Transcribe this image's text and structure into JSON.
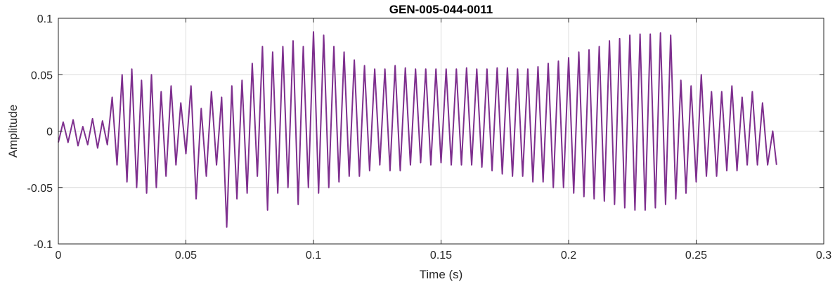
{
  "chart_data": {
    "type": "line",
    "title": "GEN-005-044-0011",
    "xlabel": "Time (s)",
    "ylabel": "Amplitude",
    "xlim": [
      0,
      0.3
    ],
    "ylim": [
      -0.1,
      0.1
    ],
    "xticks": [
      0,
      0.05,
      0.1,
      0.15,
      0.2,
      0.25,
      0.3
    ],
    "xtick_labels": [
      "0",
      "0.05",
      "0.1",
      "0.15",
      "0.2",
      "0.25",
      "0.3"
    ],
    "yticks": [
      -0.1,
      -0.05,
      0,
      0.05,
      0.1
    ],
    "ytick_labels": [
      "-0.1",
      "-0.05",
      "0",
      "0.05",
      "0.1"
    ],
    "grid": true,
    "legend": "none",
    "series": [
      {
        "color": "#7E2F8E",
        "x": [
          0,
          0.0019,
          0.0038,
          0.0058,
          0.0077,
          0.0096,
          0.0115,
          0.0134,
          0.0154,
          0.0173,
          0.0192,
          0.0211,
          0.023,
          0.025,
          0.0269,
          0.0288,
          0.0307,
          0.0326,
          0.0346,
          0.0365,
          0.0384,
          0.0403,
          0.0422,
          0.0442,
          0.0461,
          0.048,
          0.05,
          0.052,
          0.054,
          0.056,
          0.058,
          0.06,
          0.062,
          0.064,
          0.066,
          0.068,
          0.07,
          0.072,
          0.074,
          0.076,
          0.078,
          0.08,
          0.082,
          0.084,
          0.086,
          0.088,
          0.09,
          0.092,
          0.094,
          0.096,
          0.098,
          0.1,
          0.102,
          0.104,
          0.106,
          0.108,
          0.11,
          0.112,
          0.114,
          0.116,
          0.118,
          0.12,
          0.122,
          0.124,
          0.126,
          0.128,
          0.13,
          0.132,
          0.134,
          0.136,
          0.138,
          0.14,
          0.142,
          0.144,
          0.146,
          0.148,
          0.15,
          0.152,
          0.154,
          0.156,
          0.158,
          0.16,
          0.162,
          0.164,
          0.166,
          0.168,
          0.17,
          0.172,
          0.174,
          0.176,
          0.178,
          0.18,
          0.182,
          0.184,
          0.186,
          0.188,
          0.19,
          0.192,
          0.194,
          0.196,
          0.198,
          0.2,
          0.202,
          0.204,
          0.206,
          0.208,
          0.21,
          0.212,
          0.214,
          0.216,
          0.218,
          0.22,
          0.222,
          0.224,
          0.226,
          0.228,
          0.23,
          0.232,
          0.234,
          0.236,
          0.238,
          0.24,
          0.242,
          0.244,
          0.246,
          0.248,
          0.25,
          0.252,
          0.254,
          0.256,
          0.258,
          0.26,
          0.262,
          0.264,
          0.266,
          0.268,
          0.27,
          0.272,
          0.274,
          0.276,
          0.278,
          0.28,
          0.2815
        ],
        "y": [
          -0.01,
          0.008,
          -0.01,
          0.01,
          -0.013,
          0.004,
          -0.012,
          0.011,
          -0.015,
          0.009,
          -0.012,
          0.03,
          -0.03,
          0.05,
          -0.045,
          0.055,
          -0.05,
          0.045,
          -0.055,
          0.05,
          -0.05,
          0.035,
          -0.04,
          0.04,
          -0.03,
          0.025,
          -0.02,
          0.04,
          -0.06,
          0.02,
          -0.04,
          0.035,
          -0.03,
          0.03,
          -0.085,
          0.04,
          -0.06,
          0.045,
          -0.055,
          0.06,
          -0.04,
          0.075,
          -0.07,
          0.07,
          -0.055,
          0.075,
          -0.05,
          0.08,
          -0.065,
          0.075,
          -0.05,
          0.088,
          -0.055,
          0.085,
          -0.05,
          0.075,
          -0.045,
          0.07,
          -0.04,
          0.063,
          -0.04,
          0.058,
          -0.035,
          0.055,
          -0.03,
          0.055,
          -0.035,
          0.058,
          -0.035,
          0.056,
          -0.03,
          0.055,
          -0.028,
          0.055,
          -0.03,
          0.055,
          -0.028,
          0.055,
          -0.03,
          0.055,
          -0.03,
          0.056,
          -0.03,
          0.055,
          -0.032,
          0.055,
          -0.035,
          0.056,
          -0.038,
          0.056,
          -0.04,
          0.055,
          -0.04,
          0.055,
          -0.045,
          0.057,
          -0.045,
          0.06,
          -0.05,
          0.062,
          -0.05,
          0.065,
          -0.055,
          0.07,
          -0.058,
          0.072,
          -0.06,
          0.075,
          -0.062,
          0.08,
          -0.065,
          0.082,
          -0.068,
          0.085,
          -0.07,
          0.086,
          -0.07,
          0.086,
          -0.068,
          0.087,
          -0.065,
          0.085,
          -0.06,
          0.045,
          -0.055,
          0.04,
          -0.045,
          0.05,
          -0.04,
          0.035,
          -0.04,
          0.035,
          -0.035,
          0.04,
          -0.035,
          0.03,
          -0.03,
          0.035,
          -0.03,
          0.025,
          -0.03,
          0.0,
          -0.03
        ]
      }
    ]
  }
}
